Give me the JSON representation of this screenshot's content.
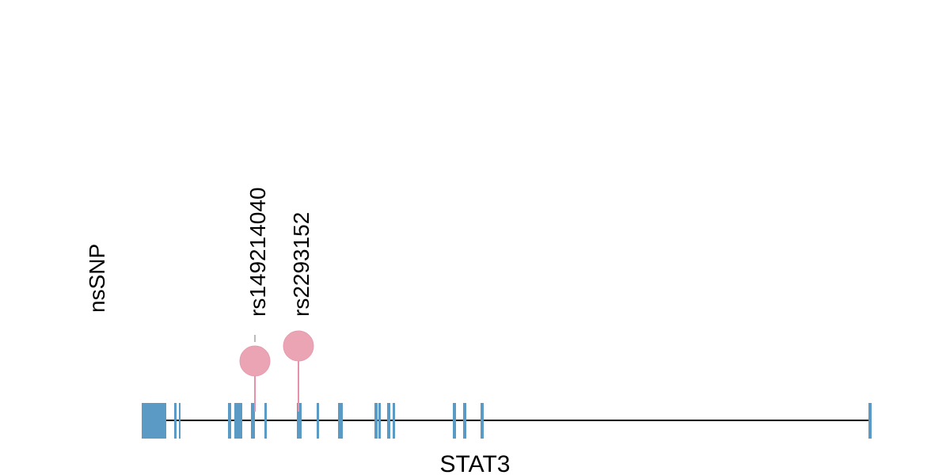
{
  "track": {
    "label": "nsSNP"
  },
  "gene": {
    "name": "STAT3"
  },
  "colors": {
    "exon": "#5b9ac4",
    "intron": "#000000",
    "snp": "#eaa4b4",
    "stem": "#e891ab",
    "connector": "#bbbbbb"
  },
  "snps": [
    {
      "id": "rs149214040"
    },
    {
      "id": "rs2293152"
    }
  ]
}
